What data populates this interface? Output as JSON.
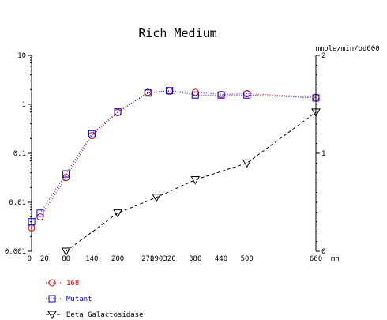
{
  "chart_data": {
    "type": "line",
    "title": "Rich Medium",
    "xlabel": "mn",
    "ylabel_right": "nmole/min/od600",
    "x_ticks": [
      "0",
      "20",
      "80",
      "140",
      "200",
      "270",
      "290",
      "320",
      "380",
      "440",
      "500",
      "660"
    ],
    "x_range": [
      0,
      660
    ],
    "y_left": {
      "scale": "log",
      "range": [
        0.001,
        10
      ],
      "ticks": [
        "0.001",
        "0.01",
        "0.1",
        "1",
        "10"
      ]
    },
    "y_right": {
      "scale": "linear",
      "range": [
        0,
        2
      ],
      "ticks": [
        "0",
        "1",
        "2"
      ]
    },
    "grid": false,
    "legend_position": "bottom-left",
    "series": [
      {
        "name": "168",
        "axis": "left",
        "color": "#cc0000",
        "marker": "circle",
        "line": "dotted",
        "x": [
          0,
          20,
          80,
          140,
          200,
          270,
          320,
          380,
          440,
          500,
          660
        ],
        "y": [
          0.003,
          0.005,
          0.032,
          0.23,
          0.68,
          1.75,
          1.85,
          1.75,
          1.6,
          1.65,
          1.4
        ]
      },
      {
        "name": "Mutant",
        "axis": "left",
        "color": "#0000cc",
        "marker": "square",
        "line": "dotted",
        "x": [
          0,
          20,
          80,
          140,
          200,
          270,
          320,
          380,
          440,
          500,
          660
        ],
        "y": [
          0.004,
          0.006,
          0.038,
          0.25,
          0.7,
          1.7,
          1.9,
          1.55,
          1.55,
          1.55,
          1.35
        ]
      },
      {
        "name": "Beta Galactosidase",
        "axis": "right",
        "color": "#000000",
        "marker": "triangle-down",
        "line": "dashed",
        "x": [
          80,
          200,
          290,
          380,
          500,
          660
        ],
        "y": [
          0.0,
          0.39,
          0.55,
          0.73,
          0.9,
          1.42
        ]
      }
    ]
  }
}
